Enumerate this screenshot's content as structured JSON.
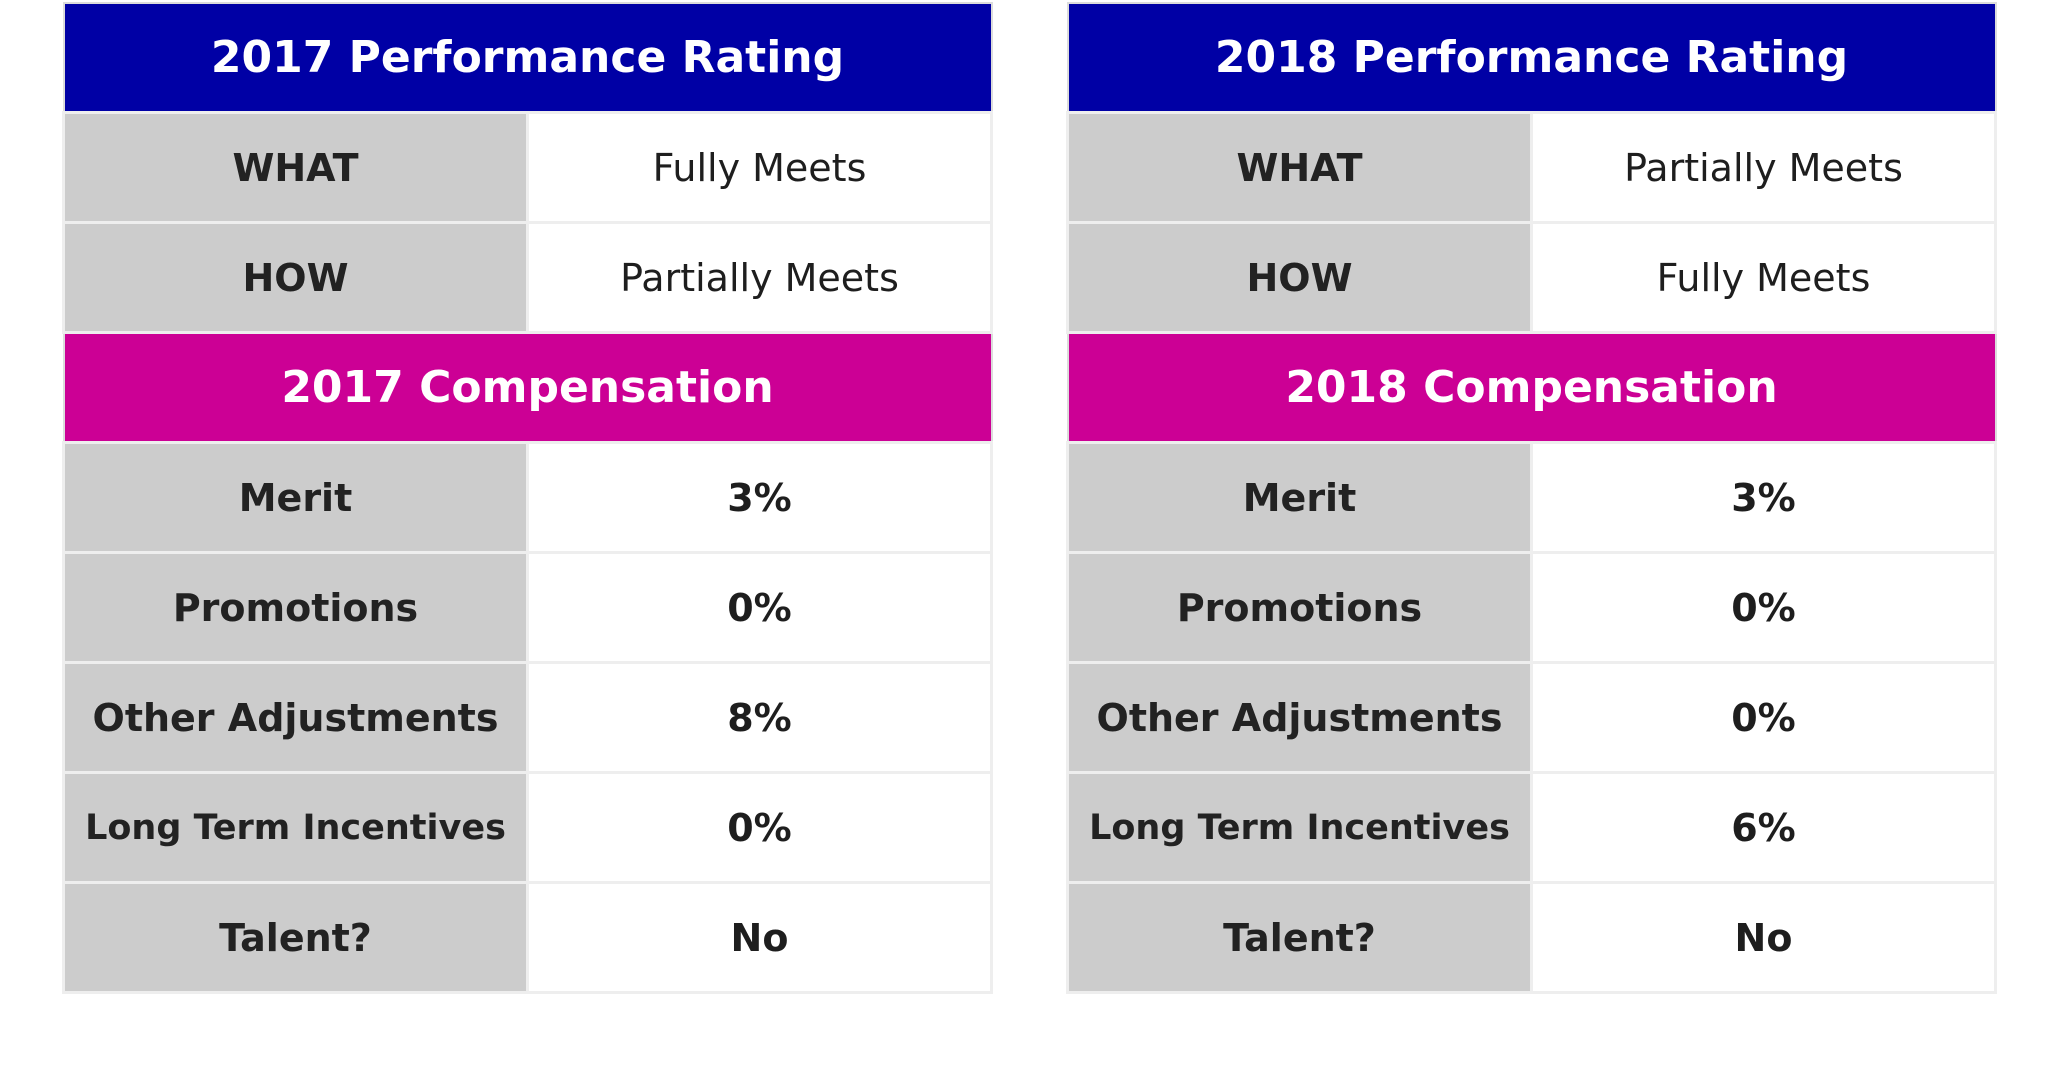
{
  "colors": {
    "rating_header": "#0000a5",
    "compensation_header": "#cc0095",
    "label_cell": "#cccccc",
    "value_cell": "#ffffff"
  },
  "panels": [
    {
      "rating_title": "2017 Performance Rating",
      "what_label": "WHAT",
      "what_value": "Fully Meets",
      "how_label": "HOW",
      "how_value": "Partially Meets",
      "compensation_title": "2017 Compensation",
      "rows": [
        {
          "label": "Merit",
          "value": "3%"
        },
        {
          "label": "Promotions",
          "value": "0%"
        },
        {
          "label": "Other Adjustments",
          "value": "8%"
        },
        {
          "label": "Long Term Incentives",
          "value": "0%"
        },
        {
          "label": "Talent?",
          "value": "No"
        }
      ]
    },
    {
      "rating_title": "2018 Performance Rating",
      "what_label": "WHAT",
      "what_value": "Partially Meets",
      "how_label": "HOW",
      "how_value": "Fully Meets",
      "compensation_title": "2018 Compensation",
      "rows": [
        {
          "label": "Merit",
          "value": "3%"
        },
        {
          "label": "Promotions",
          "value": "0%"
        },
        {
          "label": "Other Adjustments",
          "value": "0%"
        },
        {
          "label": "Long Term Incentives",
          "value": "6%"
        },
        {
          "label": "Talent?",
          "value": "No"
        }
      ]
    }
  ]
}
